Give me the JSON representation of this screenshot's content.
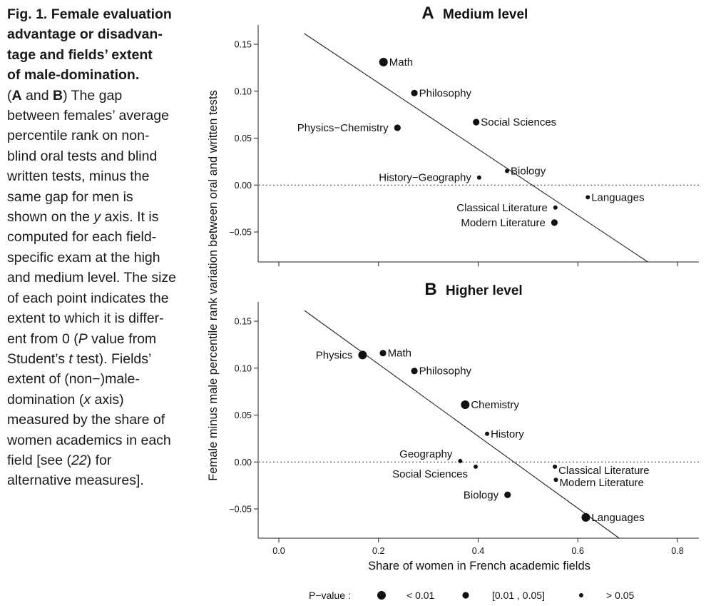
{
  "caption": {
    "title": "Fig. 1. Female evaluation advantage or disadvan-tage and fields’ extent of male-domination.",
    "title_lines": [
      "Fig. 1. Female evaluation",
      "advantage or disadvan-",
      "tage and fields’ extent",
      "of male-domination."
    ],
    "body_lines": [
      " (<b>A</b> and <b>B</b>) The gap",
      "between females’ average",
      "percentile rank on non-",
      "blind oral tests and blind",
      "written tests, minus the",
      "same gap for men is",
      "shown on the <i>y</i> axis. It is",
      "computed for each field-",
      "specific exam at the high",
      "and medium level. The size",
      "of each point indicates the",
      "extent to which it is differ-",
      "ent from 0 (<i>P</i> value from",
      "Student’s <i>t</i> test). Fields’",
      "extent of (non−)male-",
      "domination (<i>x</i> axis)",
      "measured by the share of",
      "women academics in each",
      "field [see (<i>22</i>) for",
      "alternative measures]."
    ]
  },
  "chart_data": [
    {
      "type": "scatter",
      "panel_letter": "A",
      "title": "Medium level",
      "xlim": [
        -0.05,
        0.82
      ],
      "ylim": [
        -0.08,
        0.16
      ],
      "yticks": [
        0.15,
        0.1,
        0.05,
        0.0,
        -0.05
      ],
      "ytick_labels": [
        "0.15",
        "0.10",
        "0.05",
        "0.00",
        "−0.05"
      ],
      "fit_line": {
        "x": [
          0.055,
          0.735
        ],
        "y": [
          0.16,
          -0.08
        ]
      },
      "zero_line": true,
      "points": [
        {
          "label": "Math",
          "x": 0.21,
          "y": 0.131,
          "p": "< 0.01",
          "label_side": "right"
        },
        {
          "label": "Philosophy",
          "x": 0.272,
          "y": 0.098,
          "p": "[0.01 , 0.05]",
          "label_side": "right"
        },
        {
          "label": "Physics−Chemistry",
          "x": 0.238,
          "y": 0.061,
          "p": "[0.01 , 0.05]",
          "label_side": "left"
        },
        {
          "label": "Social Sciences",
          "x": 0.396,
          "y": 0.067,
          "p": "[0.01 , 0.05]",
          "label_side": "right"
        },
        {
          "label": "History−Geography",
          "x": 0.402,
          "y": 0.008,
          "p": "> 0.05",
          "label_side": "left"
        },
        {
          "label": "Biology",
          "x": 0.458,
          "y": 0.015,
          "p": "> 0.05",
          "label_side": "right"
        },
        {
          "label": "Languages",
          "x": 0.62,
          "y": -0.013,
          "p": "> 0.05",
          "label_side": "right"
        },
        {
          "label": "Classical Literature",
          "x": 0.555,
          "y": -0.024,
          "p": "> 0.05",
          "label_side": "left"
        },
        {
          "label": "Modern Literature",
          "x": 0.553,
          "y": -0.04,
          "p": "[0.01 , 0.05]",
          "label_side": "left"
        }
      ]
    },
    {
      "type": "scatter",
      "panel_letter": "B",
      "title": "Higher level",
      "xlim": [
        -0.05,
        0.82
      ],
      "ylim": [
        -0.08,
        0.16
      ],
      "yticks": [
        0.15,
        0.1,
        0.05,
        0.0,
        -0.05
      ],
      "ytick_labels": [
        "0.15",
        "0.10",
        "0.05",
        "0.00",
        "−0.05"
      ],
      "xticks": [
        0.0,
        0.2,
        0.4,
        0.6,
        0.8
      ],
      "xtick_labels": [
        "0.0",
        "0.2",
        "0.4",
        "0.6",
        "0.8"
      ],
      "xlabel": "Share of women in French academic fields",
      "fit_line": {
        "x": [
          0.055,
          0.68
        ],
        "y": [
          0.16,
          -0.08
        ]
      },
      "zero_line": true,
      "points": [
        {
          "label": "Physics",
          "x": 0.168,
          "y": 0.114,
          "p": "< 0.01",
          "label_side": "left"
        },
        {
          "label": "Math",
          "x": 0.209,
          "y": 0.116,
          "p": "[0.01 , 0.05]",
          "label_side": "right"
        },
        {
          "label": "Philosophy",
          "x": 0.272,
          "y": 0.097,
          "p": "[0.01 , 0.05]",
          "label_side": "right"
        },
        {
          "label": "Chemistry",
          "x": 0.374,
          "y": 0.061,
          "p": "< 0.01",
          "label_side": "right"
        },
        {
          "label": "History",
          "x": 0.418,
          "y": 0.03,
          "p": "> 0.05",
          "label_side": "right"
        },
        {
          "label": "Geography",
          "x": 0.364,
          "y": 0.001,
          "p": "> 0.05",
          "label_side": "left",
          "label_dy": -10
        },
        {
          "label": "Social Sciences",
          "x": 0.395,
          "y": -0.005,
          "p": "> 0.05",
          "label_side": "left",
          "label_dy": 10
        },
        {
          "label": "Biology",
          "x": 0.459,
          "y": -0.035,
          "p": "[0.01 , 0.05]",
          "label_side": "left"
        },
        {
          "label": "Classical Literature",
          "x": 0.554,
          "y": -0.005,
          "p": "> 0.05",
          "label_side": "right",
          "label_dy": 5
        },
        {
          "label": "Modern Literature",
          "x": 0.556,
          "y": -0.019,
          "p": "> 0.05",
          "label_side": "right",
          "label_dy": 4
        },
        {
          "label": "Languages",
          "x": 0.616,
          "y": -0.059,
          "p": "< 0.01",
          "label_side": "right"
        }
      ]
    }
  ],
  "shared_ylabel": "Female minus male percentile rank variation between oral and written tests",
  "legend": {
    "title": "P−value :",
    "entries": [
      {
        "label": "< 0.01",
        "p": "< 0.01"
      },
      {
        "label": "[0.01 , 0.05]",
        "p": "[0.01 , 0.05]"
      },
      {
        "label": "> 0.05",
        "p": "> 0.05"
      }
    ]
  },
  "marker_sizes": {
    "< 0.01": "large",
    "[0.01 , 0.05]": "medium",
    "> 0.05": "small"
  }
}
